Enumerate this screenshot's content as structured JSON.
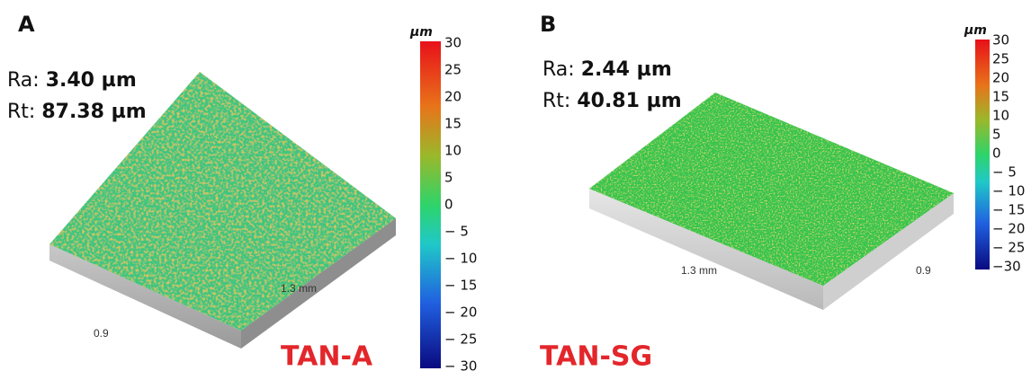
{
  "panels": [
    {
      "label": "A",
      "ra_label": "Ra:",
      "ra_value": "3.40 µm",
      "rt_label": "Rt:",
      "rt_value": "87.38 µm",
      "length_label": "1.3 mm",
      "width_label": "0.9",
      "sample": "TAN-A",
      "colorbar": {
        "unit": "µm",
        "ticks": [
          "30",
          "25",
          "20",
          "15",
          "10",
          "5",
          "0",
          "− 5",
          "− 10",
          "− 15",
          "− 20",
          "− 25",
          "− 30"
        ]
      }
    },
    {
      "label": "B",
      "ra_label": "Ra:",
      "ra_value": "2.44 µm",
      "rt_label": "Rt:",
      "rt_value": "40.81 µm",
      "length_label": "1.3 mm",
      "width_label": "0.9",
      "sample": "TAN-SG",
      "colorbar": {
        "unit": "µm",
        "ticks": [
          "30",
          "25",
          "20",
          "15",
          "10",
          "5",
          "0",
          "− 5",
          "− 10",
          "− 15",
          "− 20",
          "− 25",
          "−30"
        ]
      }
    }
  ]
}
